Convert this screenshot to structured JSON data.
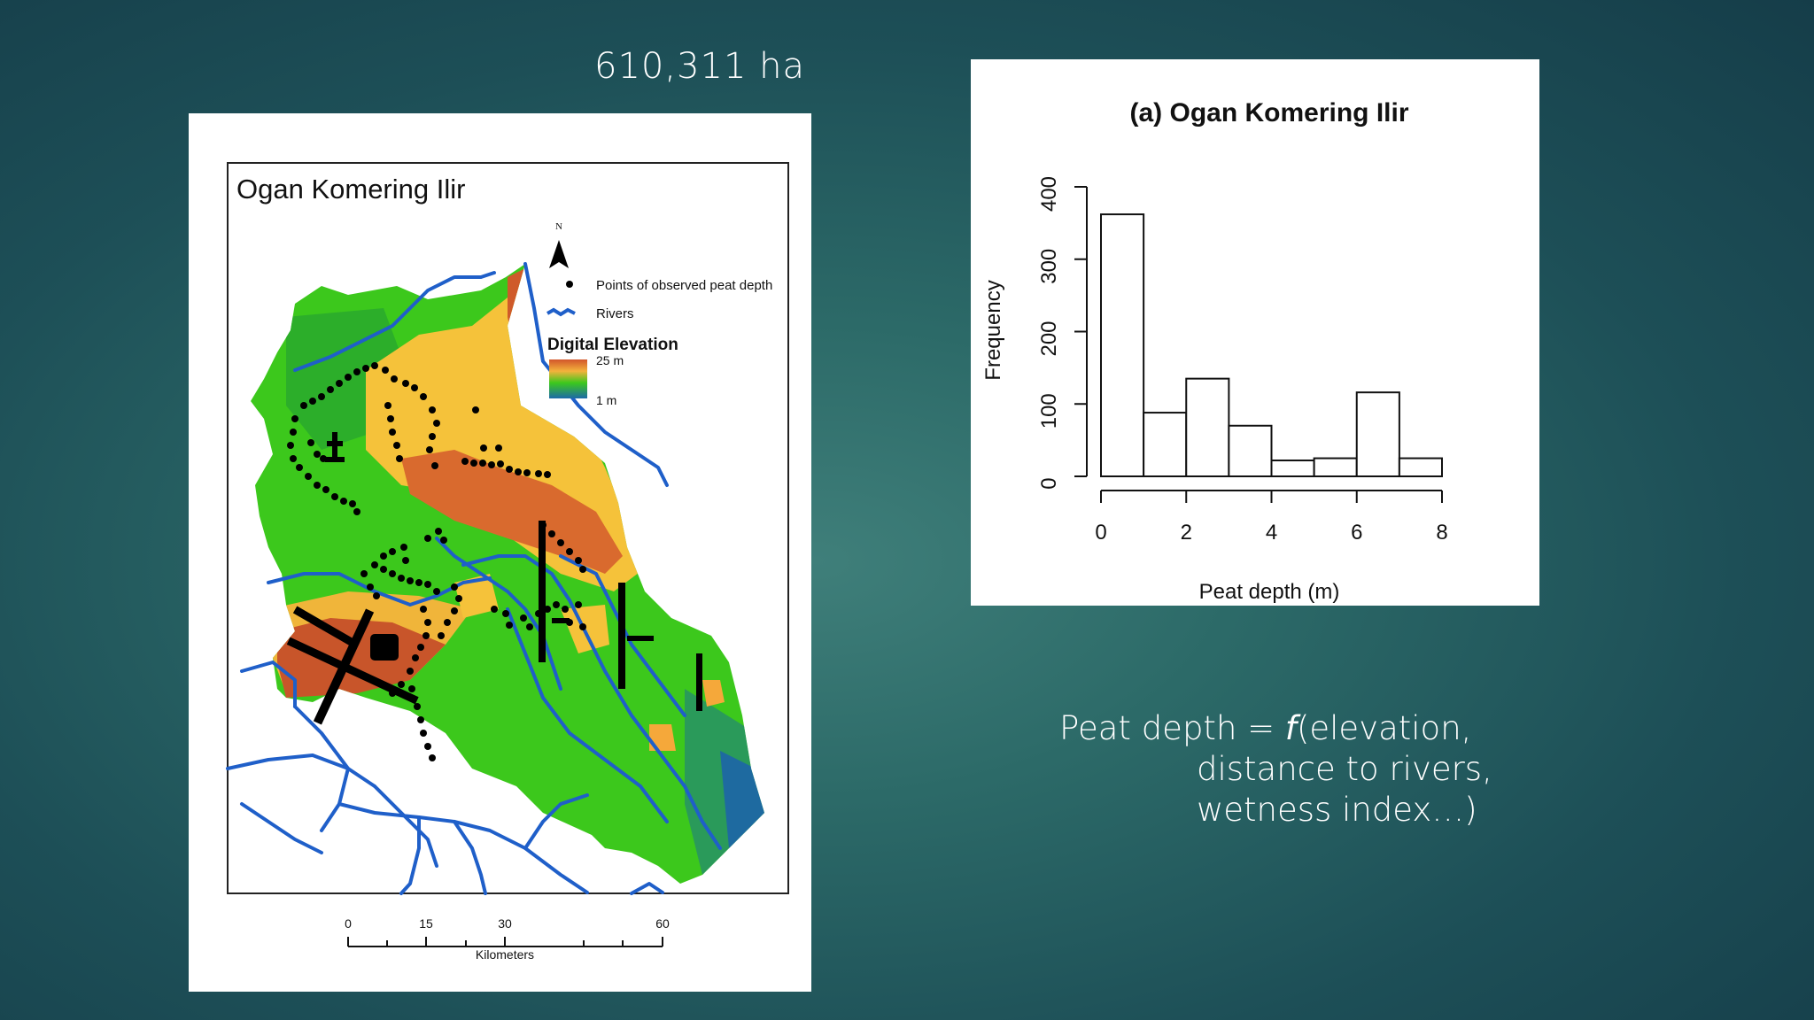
{
  "slide": {
    "area_label": "610,311 ha",
    "formula": {
      "line1_prefix": "Peat depth = ",
      "line1_func": "f",
      "line1_suffix": "(elevation,",
      "line2": "distance to rivers,",
      "line3": "wetness index…)"
    }
  },
  "map": {
    "title": "Ogan Komering Ilir",
    "north_label": "N",
    "legend": {
      "points_label": "Points of observed peat depth",
      "rivers_label": "Rivers",
      "elevation_title": "Digital Elevation",
      "elevation_high": "25 m",
      "elevation_low": "1 m"
    },
    "scale_bar": {
      "ticks": [
        "0",
        "15",
        "30",
        "60"
      ],
      "unit": "Kilometers"
    },
    "colors": {
      "river": "#1f5fc9",
      "high": "#c8552a",
      "mid": "#f2b63a",
      "low_green": "#34c41a",
      "lowest": "#1c6fa6"
    }
  },
  "chart_data": {
    "type": "histogram",
    "title": "(a) Ogan Komering Ilir",
    "xlabel": "Peat depth (m)",
    "ylabel": "Frequency",
    "bin_edges": [
      0,
      1,
      2,
      3,
      4,
      5,
      6,
      7,
      8
    ],
    "values": [
      362,
      88,
      135,
      70,
      22,
      25,
      116,
      25
    ],
    "xlim": [
      0,
      8
    ],
    "ylim": [
      0,
      400
    ],
    "xticks": [
      "0",
      "2",
      "4",
      "6",
      "8"
    ],
    "yticks": [
      "0",
      "100",
      "200",
      "300",
      "400"
    ],
    "grid": false
  }
}
